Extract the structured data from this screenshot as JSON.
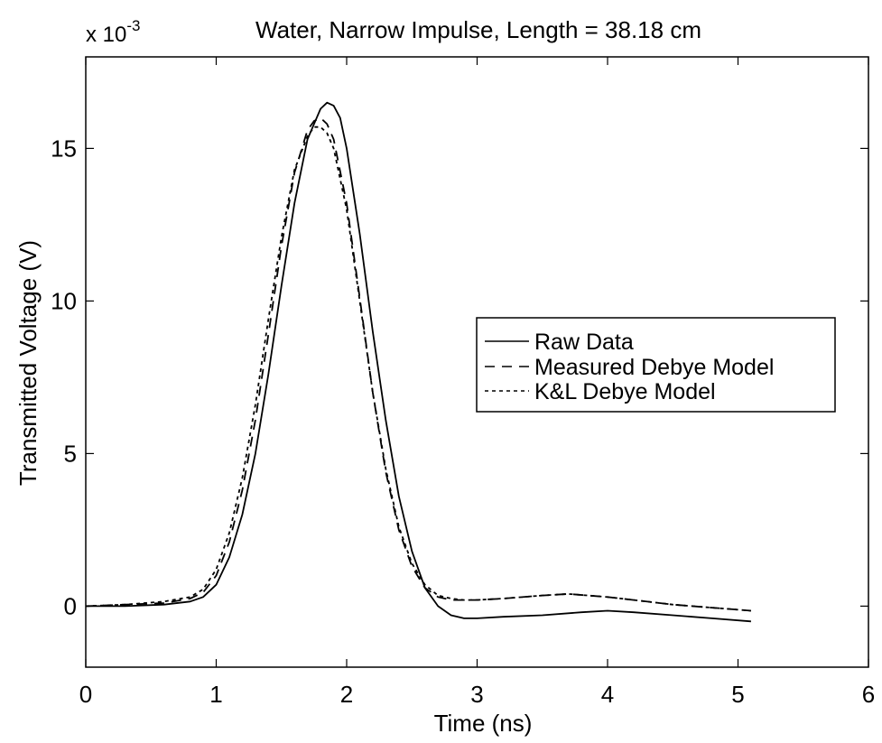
{
  "chart_data": {
    "type": "line",
    "title": "Water, Narrow Impulse, Length = 38.18 cm",
    "xlabel": "Time (ns)",
    "ylabel": "Transmitted Voltage (V)",
    "y_exponent_base": "x 10",
    "y_exponent_power": "-3",
    "xlim": [
      0,
      6
    ],
    "ylim": [
      -2,
      18
    ],
    "xticks": [
      "0",
      "1",
      "2",
      "3",
      "4",
      "5",
      "6"
    ],
    "yticks": [
      "0",
      "5",
      "10",
      "15"
    ],
    "grid": false,
    "legend_position": "right",
    "series": [
      {
        "name": "Raw Data",
        "style": "solid",
        "x": [
          0,
          0.3,
          0.6,
          0.8,
          0.9,
          1.0,
          1.1,
          1.2,
          1.3,
          1.4,
          1.5,
          1.6,
          1.7,
          1.8,
          1.85,
          1.9,
          1.95,
          2.0,
          2.1,
          2.2,
          2.3,
          2.4,
          2.5,
          2.6,
          2.7,
          2.8,
          2.9,
          3.0,
          3.2,
          3.5,
          3.8,
          4.0,
          4.2,
          4.5,
          4.8,
          5.1
        ],
        "y": [
          0,
          0,
          0.05,
          0.15,
          0.3,
          0.7,
          1.6,
          3.0,
          5.0,
          7.6,
          10.5,
          13.2,
          15.3,
          16.3,
          16.5,
          16.4,
          16.0,
          15.0,
          12.2,
          9.0,
          6.1,
          3.6,
          1.8,
          0.6,
          0,
          -0.3,
          -0.4,
          -0.4,
          -0.35,
          -0.3,
          -0.2,
          -0.15,
          -0.2,
          -0.3,
          -0.4,
          -0.5
        ]
      },
      {
        "name": "Measured Debye Model",
        "style": "dashed",
        "x": [
          0,
          0.3,
          0.6,
          0.8,
          0.9,
          1.0,
          1.1,
          1.2,
          1.3,
          1.4,
          1.5,
          1.6,
          1.7,
          1.75,
          1.8,
          1.85,
          1.9,
          2.0,
          2.1,
          2.2,
          2.3,
          2.4,
          2.5,
          2.6,
          2.7,
          2.8,
          2.9,
          3.0,
          3.2,
          3.5,
          3.7,
          4.0,
          4.2,
          4.5,
          4.8,
          5.1
        ],
        "y": [
          0,
          0.05,
          0.1,
          0.25,
          0.45,
          1.0,
          2.1,
          3.8,
          6.1,
          8.9,
          11.8,
          14.2,
          15.6,
          15.9,
          16.0,
          15.8,
          15.3,
          13.2,
          10.1,
          7.0,
          4.4,
          2.5,
          1.3,
          0.6,
          0.3,
          0.2,
          0.2,
          0.2,
          0.25,
          0.35,
          0.4,
          0.3,
          0.2,
          0.05,
          -0.05,
          -0.15
        ]
      },
      {
        "name": "K&L Debye Model",
        "style": "dotted",
        "x": [
          0,
          0.3,
          0.6,
          0.8,
          0.9,
          1.0,
          1.1,
          1.2,
          1.3,
          1.4,
          1.5,
          1.6,
          1.7,
          1.75,
          1.8,
          1.85,
          1.9,
          2.0,
          2.1,
          2.2,
          2.3,
          2.4,
          2.5,
          2.6,
          2.7,
          2.8,
          2.9,
          3.0,
          3.2,
          3.5,
          3.7,
          4.0,
          4.2,
          4.5,
          4.8,
          5.1
        ],
        "y": [
          0,
          0.05,
          0.15,
          0.3,
          0.55,
          1.2,
          2.4,
          4.2,
          6.6,
          9.4,
          12.1,
          14.3,
          15.4,
          15.7,
          15.7,
          15.5,
          15.0,
          13.0,
          10.0,
          7.0,
          4.5,
          2.6,
          1.4,
          0.7,
          0.35,
          0.25,
          0.2,
          0.2,
          0.25,
          0.35,
          0.4,
          0.3,
          0.2,
          0.05,
          -0.05,
          -0.15
        ]
      }
    ]
  }
}
